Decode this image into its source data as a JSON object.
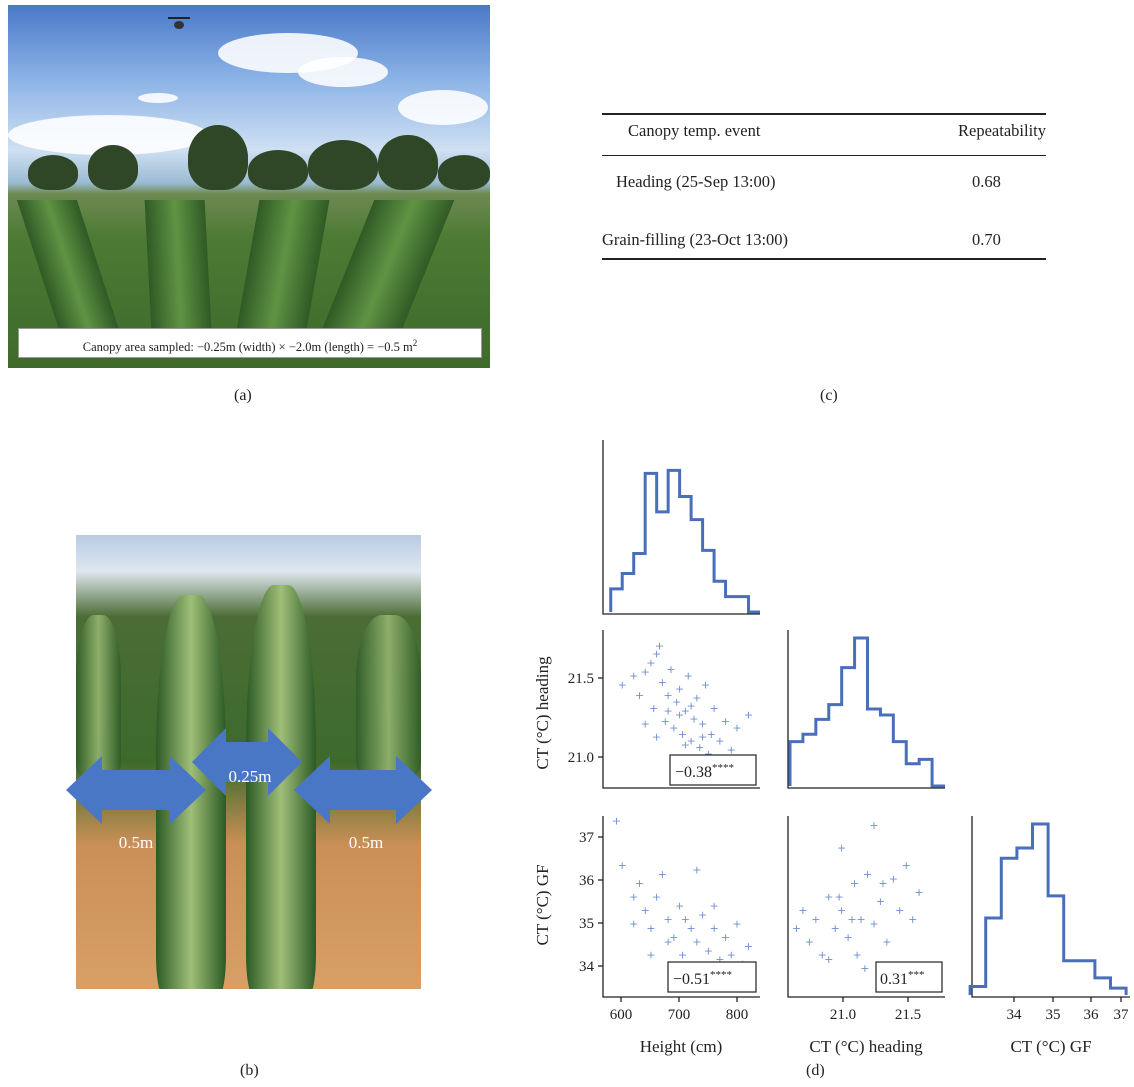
{
  "panel_a": {
    "caption_prefix": "Canopy area sampled: −0.25m (width) × −2.0m (length) = −0.5 m",
    "caption_sup": "2",
    "label": "(a)"
  },
  "panel_b": {
    "arrow_left": "0.5m",
    "arrow_center": "0.25m",
    "arrow_right": "0.5m",
    "label": "(b)"
  },
  "panel_c": {
    "headers": [
      "Canopy temp. event",
      "Repeatability"
    ],
    "rows": [
      {
        "event": "Heading (25-Sep 13:00)",
        "value": "0.68"
      },
      {
        "event": "Grain-filling (23-Oct 13:00)",
        "value": "0.70"
      }
    ],
    "label": "(c)"
  },
  "panel_d": {
    "label": "(d)",
    "ylabel_heading": "CT (°C) heading",
    "ylabel_gf": "CT (°C) GF",
    "xlabel_height": "Height (cm)",
    "xlabel_heading": "CT (°C) heading",
    "xlabel_gf": "CT (°C) GF",
    "corr_height_heading": {
      "value": "−0.38",
      "stars": "****"
    },
    "corr_height_gf": {
      "value": "−0.51",
      "stars": "****"
    },
    "corr_heading_gf": {
      "value": "0.31",
      "stars": "***"
    },
    "ticks": {
      "height": [
        "600",
        "700",
        "800"
      ],
      "heading": [
        "21.0",
        "21.5"
      ],
      "gf": [
        "34",
        "35",
        "36",
        "37"
      ],
      "heading_y": [
        "21.0",
        "21.5"
      ],
      "gf_y": [
        "34",
        "35",
        "36",
        "37"
      ]
    }
  },
  "chart_data": {
    "type": "scatter",
    "variables": [
      "Height (cm)",
      "CT (°C) heading",
      "CT (°C) GF"
    ],
    "axis_ranges": {
      "height": [
        570,
        840
      ],
      "heading": [
        20.6,
        21.8
      ],
      "gf": [
        33.3,
        37.3
      ]
    },
    "histograms": {
      "height": {
        "edges": [
          580,
          600,
          620,
          640,
          660,
          680,
          700,
          720,
          740,
          760,
          780,
          800,
          820,
          840
        ],
        "heights": [
          0.15,
          0.25,
          0.38,
          0.9,
          0.65,
          0.92,
          0.75,
          0.6,
          0.4,
          0.2,
          0.1,
          0.1,
          0.0
        ]
      },
      "heading": {
        "edges": [
          20.6,
          20.7,
          20.8,
          20.9,
          21.0,
          21.1,
          21.2,
          21.3,
          21.4,
          21.5,
          21.6,
          21.7,
          21.8
        ],
        "heights": [
          0.3,
          0.35,
          0.45,
          0.55,
          0.8,
          1.0,
          0.52,
          0.48,
          0.3,
          0.15,
          0.18,
          0.0
        ]
      },
      "gf": {
        "edges": [
          33.2,
          33.6,
          34.0,
          34.4,
          34.8,
          35.2,
          35.6,
          36.0,
          36.4,
          36.8,
          37.2
        ],
        "heights": [
          0.05,
          0.45,
          0.8,
          0.86,
          1.0,
          0.58,
          0.2,
          0.2,
          0.1,
          0.04
        ]
      }
    },
    "scatter_height_heading": [
      [
        600,
        21.38
      ],
      [
        620,
        21.45
      ],
      [
        630,
        21.3
      ],
      [
        640,
        21.48
      ],
      [
        650,
        21.55
      ],
      [
        655,
        21.2
      ],
      [
        660,
        21.62
      ],
      [
        665,
        21.68
      ],
      [
        670,
        21.4
      ],
      [
        675,
        21.1
      ],
      [
        680,
        21.3
      ],
      [
        685,
        21.5
      ],
      [
        690,
        21.05
      ],
      [
        695,
        21.25
      ],
      [
        700,
        21.35
      ],
      [
        705,
        21.0
      ],
      [
        710,
        21.18
      ],
      [
        715,
        21.45
      ],
      [
        720,
        20.95
      ],
      [
        725,
        21.12
      ],
      [
        730,
        21.28
      ],
      [
        735,
        20.9
      ],
      [
        740,
        21.08
      ],
      [
        745,
        21.38
      ],
      [
        750,
        20.85
      ],
      [
        755,
        21.0
      ],
      [
        760,
        21.2
      ],
      [
        770,
        20.95
      ],
      [
        780,
        21.1
      ],
      [
        790,
        20.88
      ],
      [
        800,
        21.05
      ],
      [
        810,
        20.8
      ],
      [
        820,
        21.15
      ],
      [
        640,
        21.08
      ],
      [
        660,
        20.98
      ],
      [
        700,
        21.15
      ],
      [
        720,
        21.22
      ],
      [
        740,
        20.98
      ],
      [
        680,
        21.18
      ],
      [
        710,
        20.92
      ]
    ],
    "scatter_height_gf": [
      [
        590,
        37.2
      ],
      [
        600,
        36.2
      ],
      [
        620,
        35.5
      ],
      [
        630,
        35.8
      ],
      [
        640,
        35.2
      ],
      [
        650,
        34.8
      ],
      [
        660,
        35.5
      ],
      [
        670,
        36.0
      ],
      [
        680,
        35.0
      ],
      [
        690,
        34.6
      ],
      [
        700,
        35.3
      ],
      [
        705,
        34.2
      ],
      [
        710,
        35.0
      ],
      [
        720,
        34.8
      ],
      [
        730,
        34.5
      ],
      [
        740,
        35.1
      ],
      [
        750,
        34.3
      ],
      [
        760,
        34.8
      ],
      [
        770,
        34.1
      ],
      [
        780,
        34.6
      ],
      [
        790,
        34.2
      ],
      [
        800,
        34.9
      ],
      [
        810,
        34.0
      ],
      [
        820,
        34.4
      ],
      [
        650,
        34.2
      ],
      [
        680,
        34.5
      ],
      [
        700,
        33.9
      ],
      [
        730,
        36.1
      ],
      [
        760,
        35.3
      ],
      [
        620,
        34.9
      ]
    ],
    "scatter_heading_gf": [
      [
        20.65,
        34.8
      ],
      [
        20.7,
        35.2
      ],
      [
        20.75,
        34.5
      ],
      [
        20.8,
        35.0
      ],
      [
        20.85,
        34.2
      ],
      [
        20.9,
        35.5
      ],
      [
        20.95,
        34.8
      ],
      [
        21.0,
        35.2
      ],
      [
        21.05,
        34.6
      ],
      [
        21.1,
        35.8
      ],
      [
        21.12,
        34.2
      ],
      [
        21.15,
        35.0
      ],
      [
        21.2,
        36.0
      ],
      [
        21.25,
        34.9
      ],
      [
        21.3,
        35.4
      ],
      [
        21.35,
        34.5
      ],
      [
        21.4,
        35.9
      ],
      [
        21.45,
        35.2
      ],
      [
        21.5,
        36.2
      ],
      [
        21.55,
        35.0
      ],
      [
        21.6,
        35.6
      ],
      [
        21.25,
        37.1
      ],
      [
        21.0,
        36.6
      ],
      [
        20.9,
        34.1
      ],
      [
        21.18,
        33.9
      ],
      [
        21.32,
        35.8
      ],
      [
        21.08,
        35.0
      ],
      [
        20.98,
        35.5
      ]
    ]
  }
}
